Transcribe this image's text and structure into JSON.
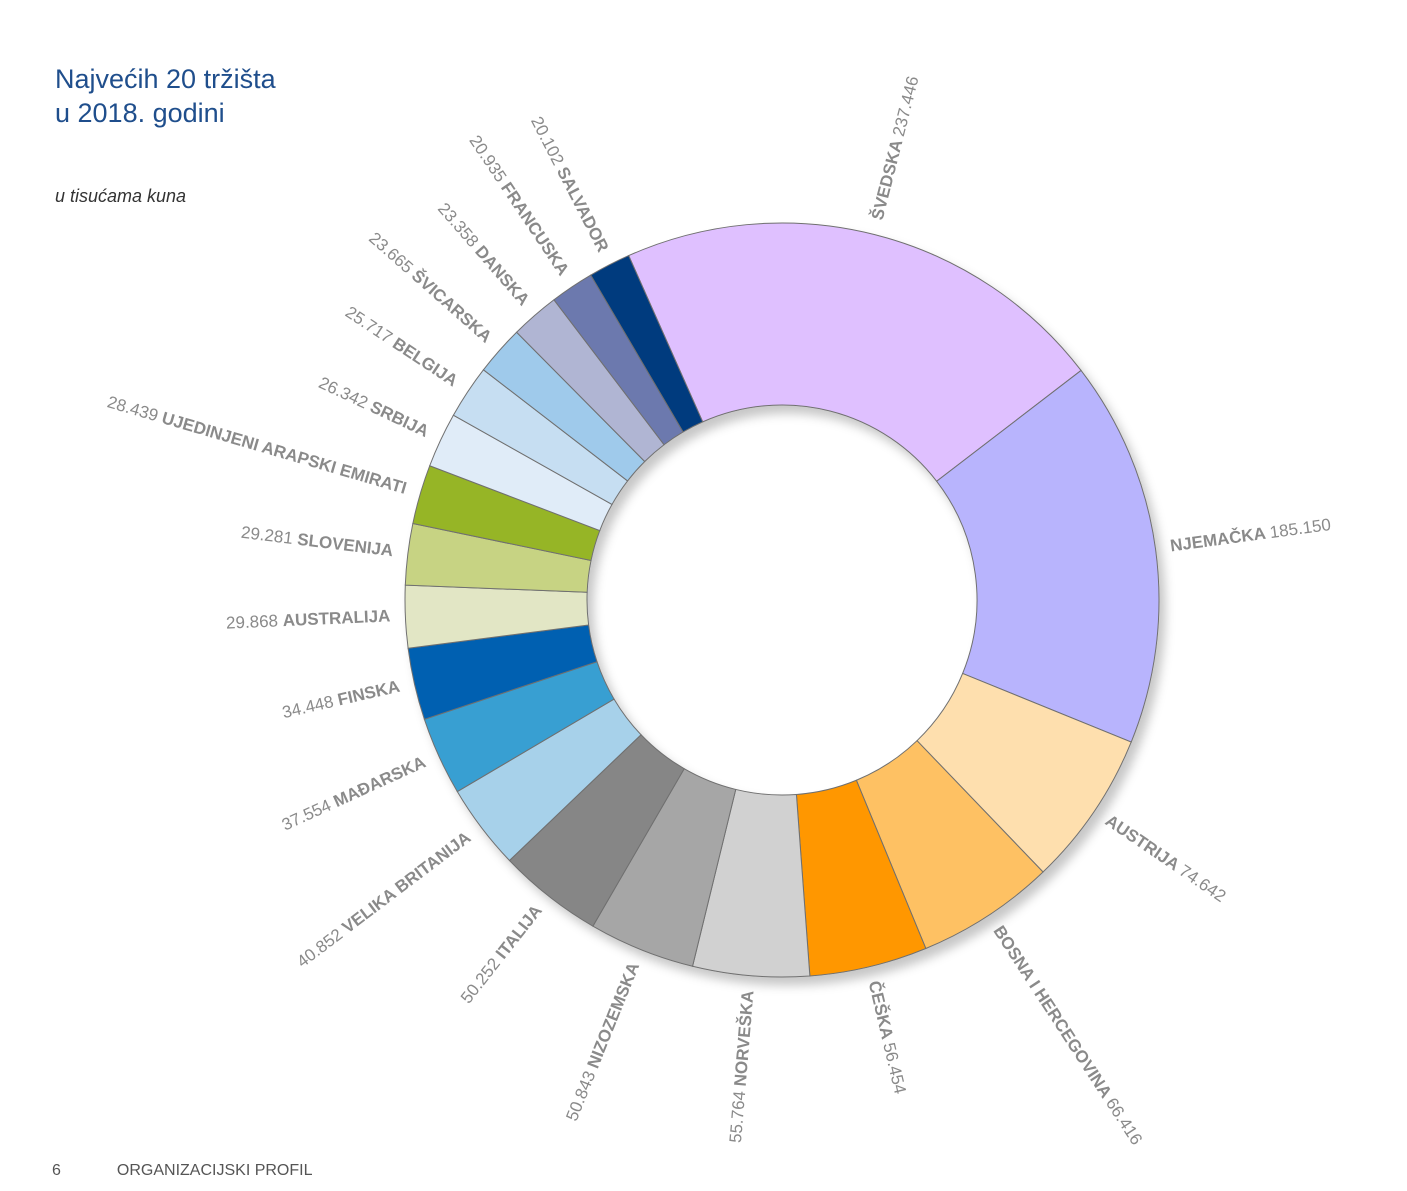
{
  "header": {
    "title_line1": "Najvećih 20 tržišta",
    "title_line2": "u 2018. godini",
    "subtitle": "u tisućama kuna"
  },
  "footer": {
    "page_number": "6",
    "section": "ORGANIZACIJSKI PROFIL"
  },
  "chart_data": {
    "type": "pie",
    "title": "Najvećih 20 tržišta u 2018. godini",
    "subtitle": "u tisućama kuna",
    "categories": [
      "ŠVEDSKA",
      "NJEMAČKA",
      "AUSTRIJA",
      "BOSNA I HERCEGOVINA",
      "ČEŠKA",
      "NORVEŠKA",
      "NIZOZEMSKA",
      "ITALIJA",
      "VELIKA BRITANIJA",
      "MAĐARSKA",
      "FINSKA",
      "AUSTRALIJA",
      "SLOVENIJA",
      "UJEDINJENI ARAPSKI EMIRATI",
      "SRBIJA",
      "BELGIJA",
      "ŠVICARSKA",
      "DANSKA",
      "FRANCUSKA",
      "SALVADOR"
    ],
    "values": [
      237446,
      185150,
      74642,
      66416,
      56454,
      55764,
      50843,
      50252,
      40852,
      37554,
      34448,
      29868,
      29281,
      28439,
      26342,
      25717,
      23665,
      23358,
      20935,
      20102
    ],
    "value_labels": [
      "237.446",
      "185.150",
      "74.642",
      "66.416",
      "56.454",
      "55.764",
      "50.843",
      "50.252",
      "40.852",
      "37.554",
      "34.448",
      "29.868",
      "29.281",
      "28.439",
      "26.342",
      "25.717",
      "23.665",
      "23.358",
      "20.935",
      "20.102"
    ],
    "colors": [
      "#dfc0ff",
      "#b8b4fd",
      "#fedfae",
      "#fec163",
      "#ff9700",
      "#d1d1d1",
      "#a6a6a6",
      "#868686",
      "#a7d1ea",
      "#389fd2",
      "#0060b1",
      "#e2e6c5",
      "#c7d383",
      "#96b526",
      "#e0ecf8",
      "#c6def2",
      "#9fcaeb",
      "#b0b5d3",
      "#6c79ae",
      "#003a7e"
    ],
    "donut": true,
    "start_angle_deg": -24,
    "direction": "clockwise",
    "legend": "none"
  }
}
